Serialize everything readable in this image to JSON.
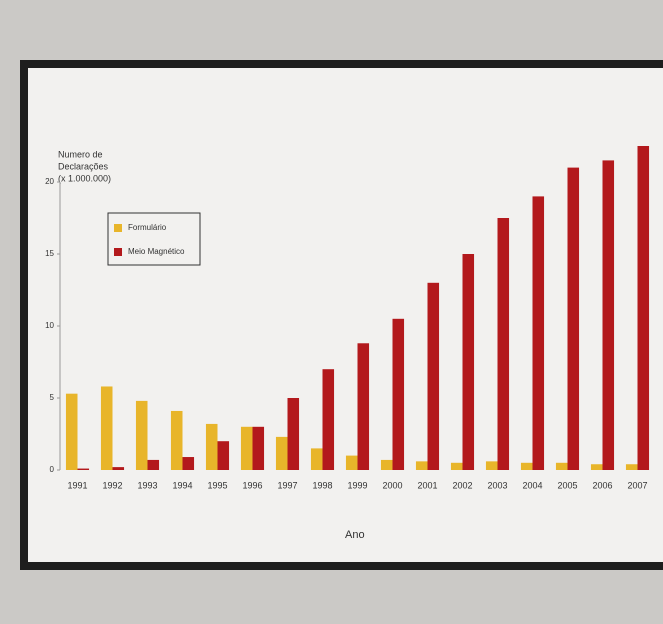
{
  "chart_data": {
    "type": "bar",
    "y_label": [
      "Numero de",
      "Declarações",
      "(x 1.000.000)"
    ],
    "x_label": "Ano",
    "categories": [
      "1991",
      "1992",
      "1993",
      "1994",
      "1995",
      "1996",
      "1997",
      "1998",
      "1999",
      "2000",
      "2001",
      "2002",
      "2003",
      "2004",
      "2005",
      "2006",
      "2007"
    ],
    "series": [
      {
        "name": "Formulário",
        "color": "#e8b52a",
        "values": [
          5.3,
          5.8,
          4.8,
          4.1,
          3.2,
          3.0,
          2.3,
          1.5,
          1.0,
          0.7,
          0.6,
          0.5,
          0.6,
          0.5,
          0.5,
          0.4,
          0.4
        ]
      },
      {
        "name": "Meio Magnético",
        "color": "#b3191c",
        "values": [
          0.1,
          0.2,
          0.7,
          0.9,
          2.0,
          3.0,
          5.0,
          7.0,
          8.8,
          10.5,
          13.0,
          15.0,
          17.5,
          19.0,
          21.0,
          21.5,
          22.5
        ]
      }
    ],
    "ylim": [
      0,
      25
    ],
    "yticks": [
      0,
      5,
      10,
      15,
      20
    ],
    "legend": "upper-left"
  }
}
